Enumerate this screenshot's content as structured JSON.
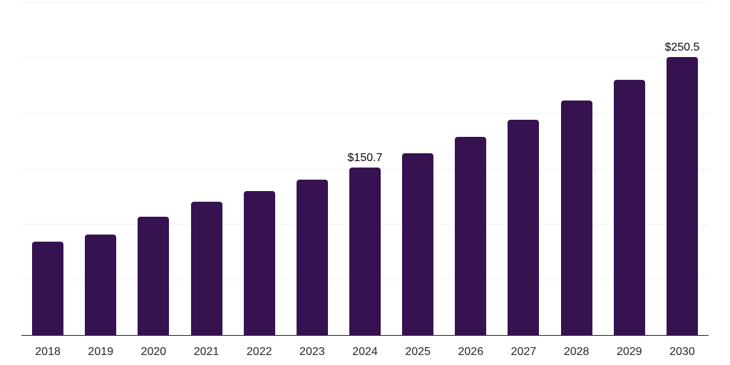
{
  "chart_data": {
    "type": "bar",
    "title": "",
    "xlabel": "",
    "ylabel": "",
    "categories": [
      "2018",
      "2019",
      "2020",
      "2021",
      "2022",
      "2023",
      "2024",
      "2025",
      "2026",
      "2027",
      "2028",
      "2029",
      "2030"
    ],
    "values": [
      84.0,
      90.4,
      106.6,
      119.9,
      129.6,
      140.2,
      150.7,
      164.0,
      178.5,
      194.3,
      211.5,
      230.2,
      250.5
    ],
    "value_labels": {
      "2024": "$150.7",
      "2030": "$250.5"
    },
    "ylim": [
      0,
      300
    ],
    "gridline_step": 50,
    "grid": "horizontal",
    "legend_position": "none",
    "colors": {
      "bar": "#361350",
      "axis_line": "#222222",
      "gridline": "#f2f2f2",
      "value_label": "#0a0a0a",
      "tick_label": "#262626",
      "background": "#ffffff"
    }
  }
}
